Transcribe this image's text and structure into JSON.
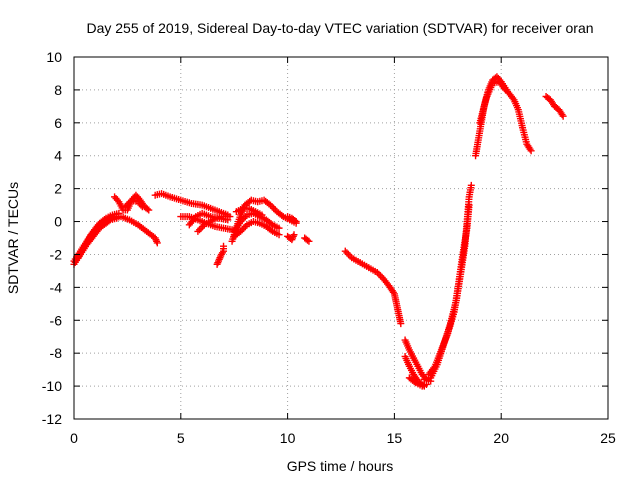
{
  "chart_data": {
    "type": "scatter",
    "title": "Day 255 of 2019, Sidereal Day-to-day VTEC variation (SDTVAR) for receiver oran",
    "xlabel": "GPS time / hours",
    "ylabel": "SDTVAR / TECUs",
    "xlim": [
      0,
      25
    ],
    "ylim": [
      -12,
      10
    ],
    "x_ticks": [
      "0",
      "5",
      "10",
      "15",
      "20",
      "25"
    ],
    "y_ticks": [
      "10",
      "8",
      "6",
      "4",
      "2",
      "0",
      "-2",
      "-4",
      "-6",
      "-8",
      "-10",
      "-12"
    ],
    "grid": true,
    "marker": "+",
    "series": [
      {
        "name": "SDTVAR",
        "color": "#ff0000",
        "segments": [
          [
            [
              0,
              -2.6
            ],
            [
              0.3,
              -2.0
            ],
            [
              0.6,
              -1.4
            ],
            [
              0.9,
              -0.9
            ],
            [
              1.2,
              -0.4
            ],
            [
              1.5,
              -0.1
            ],
            [
              1.7,
              0.1
            ],
            [
              2.0,
              0.2
            ]
          ],
          [
            [
              0,
              -2.4
            ],
            [
              0.3,
              -1.8
            ],
            [
              0.6,
              -1.2
            ],
            [
              0.9,
              -0.6
            ],
            [
              1.2,
              -0.1
            ],
            [
              1.5,
              0.2
            ],
            [
              1.8,
              0.4
            ],
            [
              2.1,
              0.5
            ]
          ],
          [
            [
              0.2,
              -2.2
            ],
            [
              0.5,
              -1.5
            ],
            [
              0.8,
              -0.8
            ],
            [
              1.1,
              -0.3
            ],
            [
              1.4,
              0.0
            ],
            [
              1.7,
              0.2
            ],
            [
              2.0,
              0.3
            ]
          ],
          [
            [
              1.5,
              0.0
            ],
            [
              1.8,
              0.2
            ],
            [
              2.2,
              0.3
            ],
            [
              2.6,
              0.1
            ],
            [
              3.0,
              -0.2
            ],
            [
              3.4,
              -0.6
            ],
            [
              3.8,
              -1.0
            ],
            [
              3.9,
              -1.3
            ]
          ],
          [
            [
              1.9,
              1.5
            ],
            [
              2.1,
              1.2
            ],
            [
              2.3,
              0.7
            ],
            [
              2.5,
              0.7
            ],
            [
              2.7,
              1.3
            ],
            [
              2.9,
              1.6
            ],
            [
              3.1,
              1.3
            ],
            [
              3.3,
              0.9
            ],
            [
              3.5,
              0.7
            ]
          ],
          [
            [
              2.4,
              0.9
            ],
            [
              2.7,
              1.3
            ],
            [
              3.0,
              1.2
            ],
            [
              3.2,
              0.9
            ]
          ],
          [
            [
              3.8,
              1.6
            ],
            [
              4.1,
              1.7
            ],
            [
              4.5,
              1.5
            ],
            [
              5.0,
              1.3
            ],
            [
              5.5,
              1.1
            ],
            [
              6.0,
              1.0
            ],
            [
              6.4,
              0.8
            ],
            [
              6.8,
              0.6
            ],
            [
              7.2,
              0.4
            ]
          ],
          [
            [
              5.0,
              0.3
            ],
            [
              5.4,
              0.3
            ],
            [
              5.8,
              0.1
            ],
            [
              6.2,
              -0.1
            ],
            [
              6.6,
              -0.3
            ],
            [
              7.0,
              -0.4
            ],
            [
              7.4,
              -0.5
            ]
          ],
          [
            [
              5.4,
              -0.2
            ],
            [
              5.7,
              0.3
            ],
            [
              6.0,
              0.5
            ],
            [
              6.4,
              0.3
            ],
            [
              6.8,
              0.2
            ],
            [
              7.2,
              0.1
            ]
          ],
          [
            [
              5.8,
              -0.6
            ],
            [
              6.1,
              -0.2
            ],
            [
              6.5,
              0.1
            ],
            [
              6.9,
              0.3
            ],
            [
              7.3,
              0.3
            ]
          ],
          [
            [
              6.7,
              -2.6
            ],
            [
              6.8,
              -2.3
            ],
            [
              6.9,
              -2.0
            ],
            [
              7.0,
              -1.8
            ],
            [
              7.0,
              -1.5
            ]
          ],
          [
            [
              7.4,
              -1.2
            ],
            [
              7.6,
              -0.4
            ],
            [
              7.8,
              0.4
            ],
            [
              8.0,
              1.0
            ],
            [
              8.3,
              1.3
            ],
            [
              8.6,
              1.2
            ],
            [
              8.9,
              1.3
            ],
            [
              9.2,
              1.0
            ],
            [
              9.5,
              0.6
            ],
            [
              9.8,
              0.3
            ],
            [
              10.1,
              0.1
            ],
            [
              10.4,
              -0.1
            ]
          ],
          [
            [
              7.5,
              -0.6
            ],
            [
              7.8,
              0.0
            ],
            [
              8.1,
              0.4
            ],
            [
              8.4,
              0.5
            ],
            [
              8.7,
              0.3
            ],
            [
              9.0,
              0.1
            ],
            [
              9.3,
              -0.2
            ],
            [
              9.6,
              -0.4
            ]
          ],
          [
            [
              7.5,
              -0.9
            ],
            [
              7.8,
              -0.6
            ],
            [
              8.1,
              -0.2
            ],
            [
              8.4,
              0.0
            ],
            [
              8.7,
              -0.1
            ],
            [
              9.0,
              -0.3
            ],
            [
              9.3,
              -0.6
            ],
            [
              9.6,
              -0.8
            ]
          ],
          [
            [
              7.6,
              0.6
            ],
            [
              7.9,
              0.8
            ],
            [
              8.2,
              0.8
            ],
            [
              8.5,
              0.6
            ],
            [
              8.8,
              0.4
            ]
          ],
          [
            [
              10.0,
              0.3
            ],
            [
              10.2,
              0.2
            ],
            [
              10.4,
              0.0
            ]
          ],
          [
            [
              10.0,
              -0.9
            ],
            [
              10.2,
              -1.1
            ],
            [
              10.3,
              -0.8
            ]
          ],
          [
            [
              10.8,
              -1.0
            ],
            [
              11.0,
              -1.2
            ]
          ],
          [
            [
              12.7,
              -1.8
            ],
            [
              13.0,
              -2.2
            ],
            [
              13.4,
              -2.5
            ],
            [
              13.8,
              -2.8
            ],
            [
              14.2,
              -3.1
            ],
            [
              14.5,
              -3.5
            ],
            [
              14.8,
              -4.0
            ],
            [
              15.0,
              -4.4
            ],
            [
              15.1,
              -5.0
            ],
            [
              15.2,
              -5.6
            ],
            [
              15.3,
              -6.2
            ]
          ],
          [
            [
              15.5,
              -7.2
            ],
            [
              15.7,
              -7.8
            ],
            [
              15.9,
              -8.3
            ],
            [
              16.1,
              -8.8
            ],
            [
              16.3,
              -9.3
            ],
            [
              16.5,
              -9.6
            ],
            [
              16.7,
              -9.7
            ]
          ],
          [
            [
              15.5,
              -8.2
            ],
            [
              15.7,
              -8.8
            ],
            [
              15.9,
              -9.3
            ],
            [
              16.1,
              -9.7
            ],
            [
              16.4,
              -10.0
            ]
          ],
          [
            [
              15.7,
              -9.5
            ],
            [
              16.0,
              -9.8
            ],
            [
              16.3,
              -10.0
            ],
            [
              16.5,
              -9.9
            ]
          ],
          [
            [
              16.4,
              -9.6
            ],
            [
              16.7,
              -9.5
            ],
            [
              17.0,
              -8.7
            ],
            [
              17.3,
              -7.5
            ],
            [
              17.6,
              -6.3
            ],
            [
              17.9,
              -4.8
            ],
            [
              18.1,
              -3.2
            ],
            [
              18.3,
              -1.5
            ],
            [
              18.4,
              0.0
            ],
            [
              18.5,
              1.5
            ],
            [
              18.6,
              2.2
            ]
          ],
          [
            [
              16.6,
              -9.3
            ],
            [
              16.9,
              -8.8
            ],
            [
              17.2,
              -7.8
            ],
            [
              17.5,
              -6.8
            ],
            [
              17.8,
              -5.5
            ],
            [
              18.0,
              -3.8
            ],
            [
              18.2,
              -2.0
            ],
            [
              18.4,
              -0.4
            ],
            [
              18.5,
              1.0
            ]
          ],
          [
            [
              18.8,
              4.0
            ],
            [
              19.0,
              5.5
            ],
            [
              19.2,
              7.0
            ],
            [
              19.4,
              8.0
            ],
            [
              19.6,
              8.6
            ],
            [
              19.8,
              8.8
            ],
            [
              20.0,
              8.5
            ],
            [
              20.3,
              7.9
            ],
            [
              20.6,
              7.4
            ],
            [
              20.8,
              6.8
            ],
            [
              21.0,
              5.7
            ],
            [
              21.2,
              4.7
            ],
            [
              21.4,
              4.3
            ]
          ],
          [
            [
              19.0,
              6.0
            ],
            [
              19.3,
              7.5
            ],
            [
              19.6,
              8.4
            ],
            [
              19.9,
              8.5
            ],
            [
              20.2,
              8.0
            ]
          ],
          [
            [
              22.1,
              7.6
            ],
            [
              22.3,
              7.4
            ],
            [
              22.5,
              7.0
            ],
            [
              22.7,
              6.8
            ],
            [
              22.9,
              6.4
            ]
          ]
        ]
      }
    ]
  }
}
